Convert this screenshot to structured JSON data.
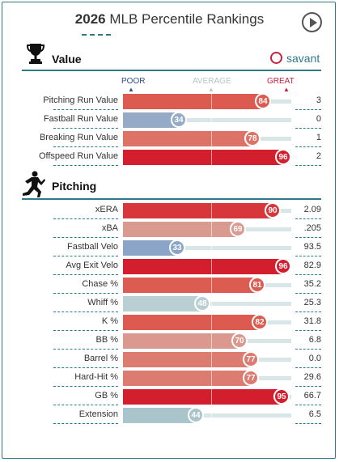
{
  "header": {
    "year": "2026",
    "title": "MLB Percentile Rankings"
  },
  "brand": {
    "name": "savant"
  },
  "scale": {
    "poor": "POOR",
    "average": "AVERAGE",
    "great": "GREAT"
  },
  "colors": {
    "great": "#d0242e",
    "poor": "#7f9bbf",
    "accent": "#2f7a86"
  },
  "sections": [
    {
      "title": "Value",
      "icon": "trophy-icon",
      "rows": [
        {
          "label": "Pitching Run Value",
          "pct": 84,
          "value": "3",
          "color": "#dc5a50"
        },
        {
          "label": "Fastball Run Value",
          "pct": 34,
          "value": "0",
          "color": "#95aac7"
        },
        {
          "label": "Breaking Run Value",
          "pct": 78,
          "value": "1",
          "color": "#dd7366"
        },
        {
          "label": "Offspeed Run Value",
          "pct": 96,
          "value": "2",
          "color": "#d31f2d"
        }
      ]
    },
    {
      "title": "Pitching",
      "icon": "pitcher-icon",
      "rows": [
        {
          "label": "xERA",
          "pct": 90,
          "value": "2.09",
          "color": "#d7363b"
        },
        {
          "label": "xBA",
          "pct": 69,
          "value": ".205",
          "color": "#d99a90"
        },
        {
          "label": "Fastball Velo",
          "pct": 33,
          "value": "93.5",
          "color": "#8aa5c8"
        },
        {
          "label": "Avg Exit Velo",
          "pct": 96,
          "value": "82.9",
          "color": "#d31f2d"
        },
        {
          "label": "Chase %",
          "pct": 81,
          "value": "35.2",
          "color": "#dc5c52"
        },
        {
          "label": "Whiff %",
          "pct": 48,
          "value": "25.3",
          "color": "#b9cfd3"
        },
        {
          "label": "K %",
          "pct": 82,
          "value": "31.8",
          "color": "#dc5a50"
        },
        {
          "label": "BB %",
          "pct": 70,
          "value": "6.8",
          "color": "#da988e"
        },
        {
          "label": "Barrel %",
          "pct": 77,
          "value": "0.0",
          "color": "#dc7b6f"
        },
        {
          "label": "Hard-Hit %",
          "pct": 77,
          "value": "29.6",
          "color": "#dc7b6f"
        },
        {
          "label": "GB %",
          "pct": 95,
          "value": "66.7",
          "color": "#d31f2d"
        },
        {
          "label": "Extension",
          "pct": 44,
          "value": "6.5",
          "color": "#a9c4ca"
        }
      ]
    }
  ]
}
